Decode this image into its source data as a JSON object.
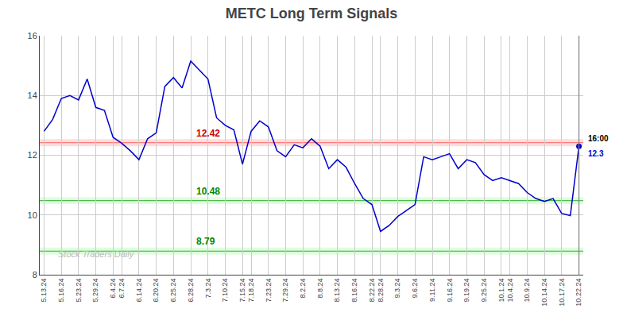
{
  "chart_data": {
    "type": "line",
    "title": "METC Long Term Signals",
    "categories": [
      "5.13.24",
      null,
      "5.16.24",
      null,
      "5.23.24",
      null,
      "5.29.24",
      null,
      "6.4.24",
      "6.7.24",
      null,
      "6.14.24",
      null,
      "6.20.24",
      null,
      "6.25.24",
      null,
      "6.28.24",
      null,
      "7.3.24",
      null,
      "7.10.24",
      null,
      "7.15.24",
      "7.18.24",
      null,
      "7.23.24",
      null,
      "7.29.24",
      null,
      "8.2.24",
      null,
      "8.8.24",
      null,
      "8.13.24",
      null,
      "8.16.24",
      null,
      "8.22.24",
      "8.28.24",
      null,
      "9.3.24",
      null,
      "9.6.24",
      null,
      "9.11.24",
      null,
      "9.16.24",
      null,
      "9.19.24",
      null,
      "9.25.24",
      null,
      "10.1.24",
      "10.4.24",
      null,
      "10.9.24",
      null,
      "10.14.24",
      null,
      "10.17.24",
      null,
      "10.22.24"
    ],
    "values": [
      12.8,
      13.2,
      13.9,
      14.0,
      13.85,
      14.55,
      13.6,
      13.5,
      12.6,
      12.4,
      12.15,
      11.85,
      12.55,
      12.75,
      14.3,
      14.6,
      14.25,
      15.15,
      14.85,
      14.55,
      13.25,
      13.0,
      12.85,
      11.7,
      12.8,
      13.15,
      12.95,
      12.15,
      11.95,
      12.35,
      12.25,
      12.55,
      12.3,
      11.55,
      11.85,
      11.6,
      11.05,
      10.55,
      10.35,
      9.45,
      9.65,
      9.95,
      10.15,
      10.35,
      11.95,
      11.85,
      11.95,
      12.05,
      11.55,
      11.85,
      11.75,
      11.35,
      11.15,
      11.25,
      11.15,
      11.05,
      10.75,
      10.55,
      10.45,
      10.55,
      10.05,
      9.98,
      12.3
    ],
    "color": "#0000cc",
    "marker": "circle",
    "ylim": [
      8,
      16
    ],
    "yticks": [
      8,
      10,
      12,
      14,
      16
    ],
    "grid": true,
    "grid_color": "#cccccc",
    "background_color": "#ffffff",
    "hlines": [
      {
        "y": 12.42,
        "label": "12.42",
        "color": "#ff6666",
        "band_color": "#ffdddd",
        "label_color": "#cc0000"
      },
      {
        "y": 10.48,
        "label": "10.48",
        "color": "#33aa33",
        "band_color": "#ddffdd",
        "label_color": "#008800"
      },
      {
        "y": 8.79,
        "label": "8.79",
        "color": "#33aa33",
        "band_color": "#ddffdd",
        "label_color": "#008800"
      }
    ],
    "vline_color": "gray",
    "last_point_labels": [
      {
        "text": "16:00",
        "color": "#000000"
      },
      {
        "text": "12.3",
        "color": "#0000cc"
      }
    ],
    "watermark": {
      "text": "Stock Traders Daily",
      "color": "#bbbbbb"
    }
  }
}
